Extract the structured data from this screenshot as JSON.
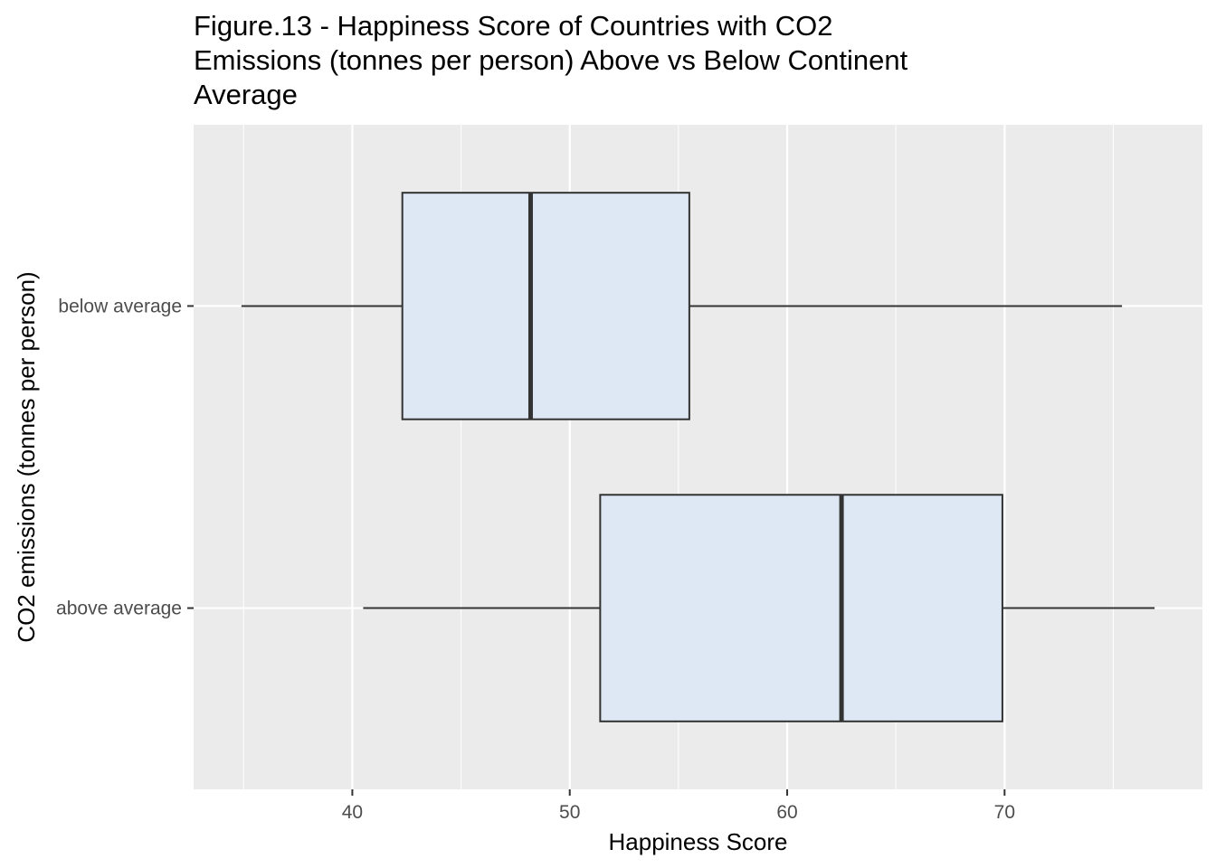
{
  "chart_data": {
    "type": "boxplot",
    "orientation": "horizontal",
    "title": "Figure.13 - Happiness Score of Countries with CO2 Emissions (tonnes per person) Above vs Below Continent Average",
    "title_lines": [
      "Figure.13 - Happiness Score of Countries with CO2",
      "Emissions (tonnes per person) Above vs Below Continent",
      "Average"
    ],
    "xlabel": "Happiness Score",
    "ylabel": "CO2 emissions (tonnes per person)",
    "xlim": [
      32.7,
      79.1
    ],
    "x_ticks": [
      40,
      50,
      60,
      70
    ],
    "x_minor_ticks": [
      35,
      45,
      55,
      65,
      75
    ],
    "categories": [
      "above average",
      "below average"
    ],
    "boxes": [
      {
        "category": "above average",
        "whisker_low": 40.5,
        "q1": 51.4,
        "median": 62.5,
        "q3": 69.9,
        "whisker_high": 76.9
      },
      {
        "category": "below average",
        "whisker_low": 34.9,
        "q1": 42.3,
        "median": 48.2,
        "q3": 55.5,
        "whisker_high": 75.4
      }
    ],
    "box_fill": "#dde8f4",
    "box_stroke": "#333333",
    "panel_background": "#ebebeb",
    "grid": true,
    "legend": "none"
  }
}
